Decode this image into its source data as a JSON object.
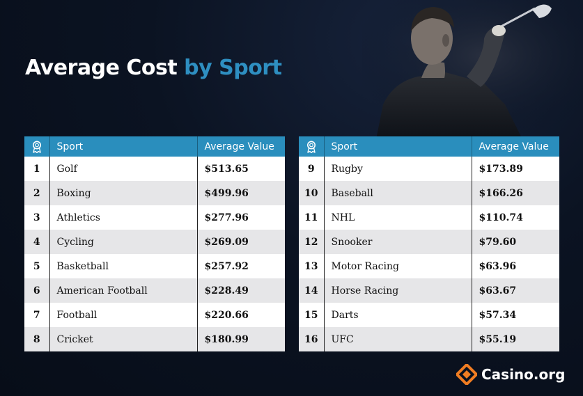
{
  "title": {
    "main": "Average Cost",
    "accent": "by Sport"
  },
  "headers": {
    "sport": "Sport",
    "value": "Average Value"
  },
  "left_rows": [
    {
      "rank": "1",
      "sport": "Golf",
      "value": "$513.65"
    },
    {
      "rank": "2",
      "sport": "Boxing",
      "value": "$499.96"
    },
    {
      "rank": "3",
      "sport": "Athletics",
      "value": "$277.96"
    },
    {
      "rank": "4",
      "sport": "Cycling",
      "value": "$269.09"
    },
    {
      "rank": "5",
      "sport": "Basketball",
      "value": "$257.92"
    },
    {
      "rank": "6",
      "sport": "American Football",
      "value": "$228.49"
    },
    {
      "rank": "7",
      "sport": "Football",
      "value": "$220.66"
    },
    {
      "rank": "8",
      "sport": "Cricket",
      "value": "$180.99"
    }
  ],
  "right_rows": [
    {
      "rank": "9",
      "sport": "Rugby",
      "value": "$173.89"
    },
    {
      "rank": "10",
      "sport": "Baseball",
      "value": "$166.26"
    },
    {
      "rank": "11",
      "sport": "NHL",
      "value": "$110.74"
    },
    {
      "rank": "12",
      "sport": "Snooker",
      "value": "$79.60"
    },
    {
      "rank": "13",
      "sport": "Motor Racing",
      "value": "$63.96"
    },
    {
      "rank": "14",
      "sport": "Horse Racing",
      "value": "$63.67"
    },
    {
      "rank": "15",
      "sport": "Darts",
      "value": "$57.34"
    },
    {
      "rank": "16",
      "sport": "UFC",
      "value": "$55.19"
    }
  ],
  "logo": {
    "text": "Casino.org",
    "icon": "casino-org-diamond-icon"
  },
  "colors": {
    "header_bg": "#2a8ebd",
    "title_accent": "#2e8fc1",
    "logo_orange": "#f07d22",
    "background": "#0b1322"
  }
}
